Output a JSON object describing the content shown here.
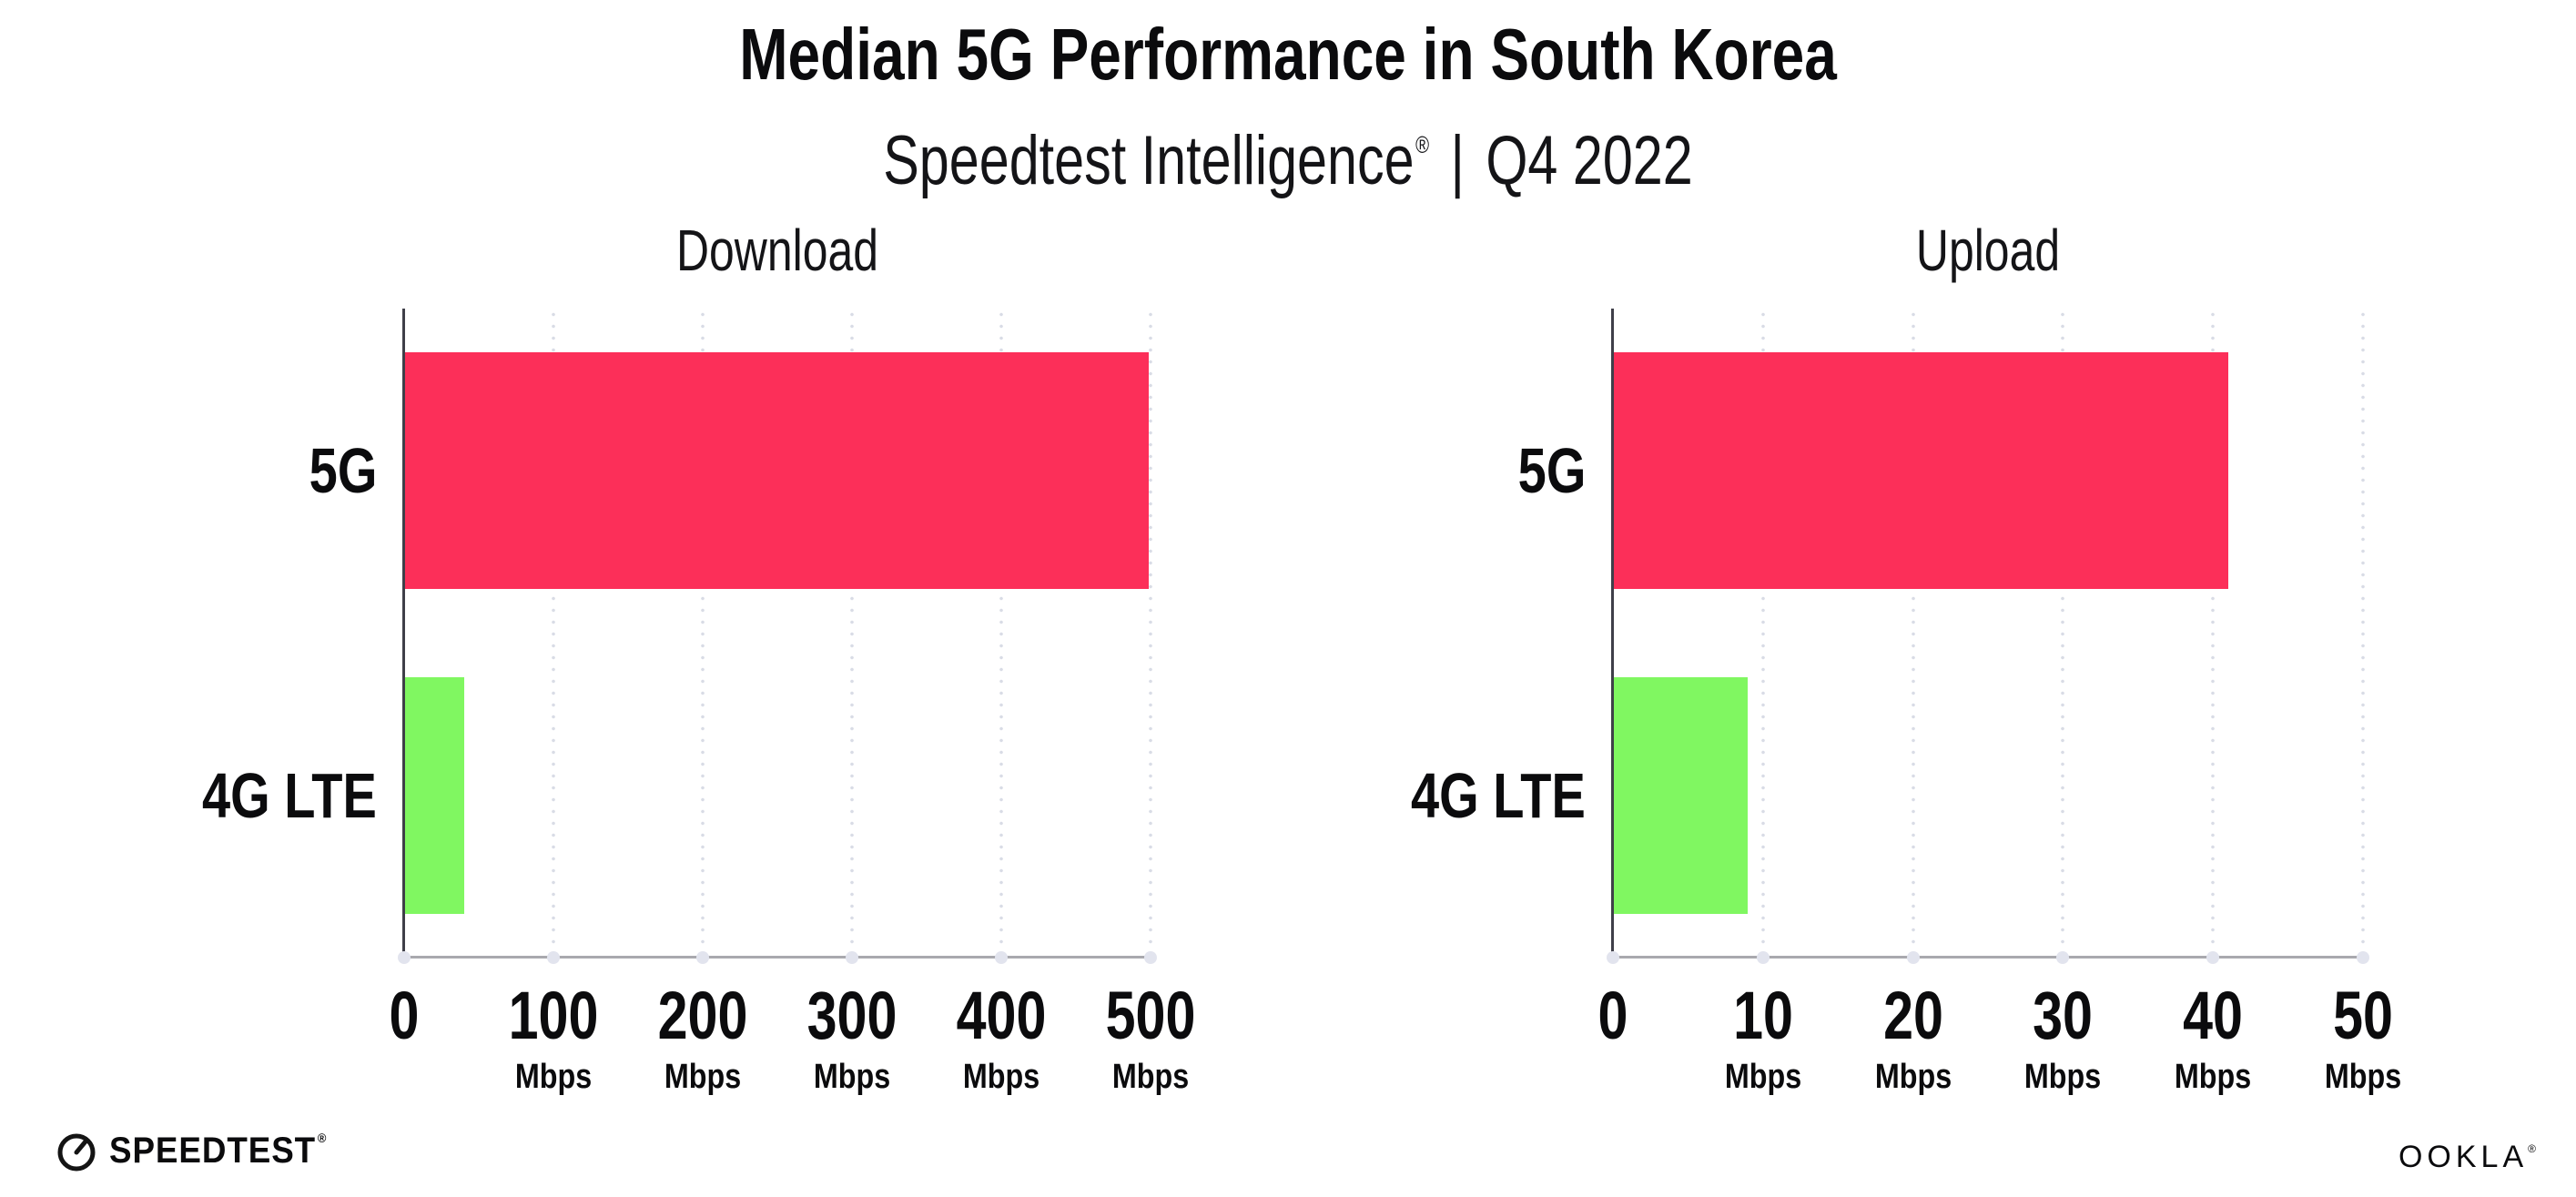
{
  "header": {
    "title": "Median 5G Performance in South Korea",
    "subtitle_brand": "Speedtest Intelligence",
    "subtitle_reg": "®",
    "subtitle_divider": "|",
    "subtitle_period": "Q4 2022"
  },
  "footer": {
    "speedtest_label": "SPEEDTEST",
    "speedtest_reg": "®",
    "ookla_label": "OOKLA",
    "ookla_reg": "®"
  },
  "colors": {
    "bar_5g": "#FC2F59",
    "bar_4g_lte": "#80F761",
    "gridline_dots": "#D9DCE6",
    "axis_baseline": "#A9A9AE",
    "axis_spine": "#3F3F49",
    "text": "#0B0B0D"
  },
  "chart_data": [
    {
      "type": "bar",
      "orientation": "horizontal",
      "title": "Download",
      "categories": [
        "5G",
        "4G LTE"
      ],
      "values": [
        499,
        40
      ],
      "unit": "Mbps",
      "xlim": [
        0,
        500
      ],
      "xticks": [
        0,
        100,
        200,
        300,
        400,
        500
      ],
      "bar_colors": [
        "#FC2F59",
        "#80F761"
      ],
      "grid": "vertical-dotted",
      "legend": "none"
    },
    {
      "type": "bar",
      "orientation": "horizontal",
      "title": "Upload",
      "categories": [
        "5G",
        "4G LTE"
      ],
      "values": [
        41,
        9
      ],
      "unit": "Mbps",
      "xlim": [
        0,
        50
      ],
      "xticks": [
        0,
        10,
        20,
        30,
        40,
        50
      ],
      "bar_colors": [
        "#FC2F59",
        "#80F761"
      ],
      "grid": "vertical-dotted",
      "legend": "none"
    }
  ]
}
